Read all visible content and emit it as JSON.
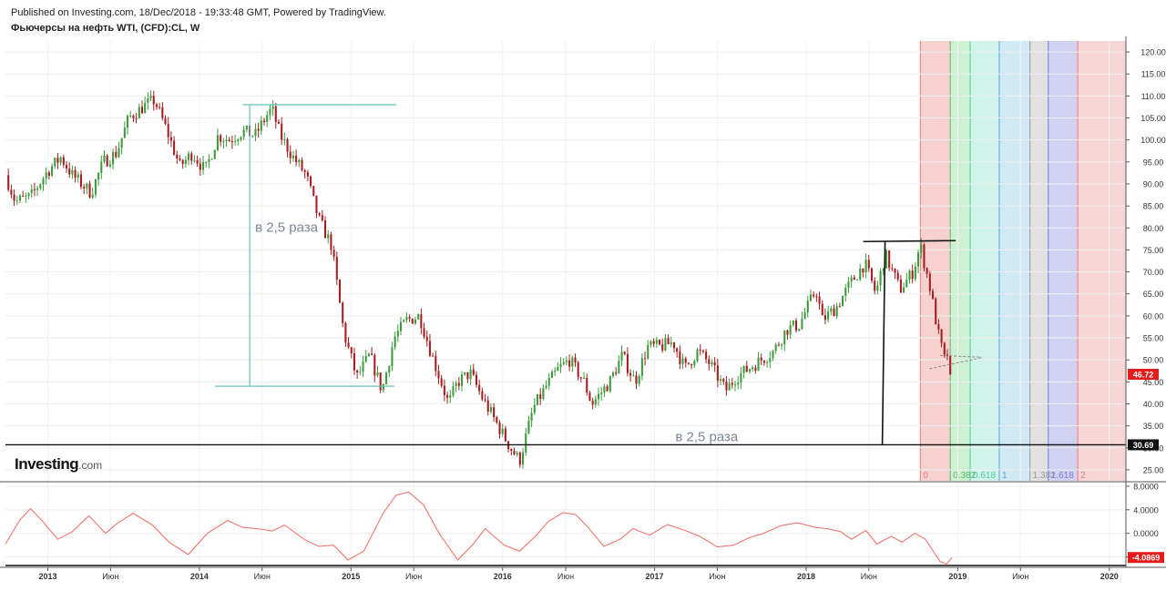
{
  "header": {
    "published": "Published on Investing.com, 18/Dec/2018 - 19:33:48 GMT, Powered by TradingView.",
    "instrument": "Фьючерсы на нефть WTI, (CFD):CL, W"
  },
  "logo": {
    "brand": "Investing",
    "domain": ".com"
  },
  "colors": {
    "bull": "#3d9b3d",
    "bear": "#a41e22",
    "oscillator": "#f0766d",
    "price_badge": "#e31c1c",
    "level_badge": "#111111",
    "annotation_line": "#66c2b5",
    "annotation_text": "#7b8794"
  },
  "chart_data": [
    {
      "type": "candlestick",
      "title": "Фьючерсы на нефть WTI, (CFD):CL, W",
      "x_tick_labels": [
        "2013",
        "Июн",
        "2014",
        "Июн",
        "2015",
        "Июн",
        "2016",
        "Июн",
        "2017",
        "Июн",
        "2018",
        "Июн",
        "2019",
        "Июн",
        "2020"
      ],
      "x_tick_dates": [
        "2013-01-01",
        "2013-06-01",
        "2014-01-01",
        "2014-06-01",
        "2015-01-01",
        "2015-06-01",
        "2016-01-01",
        "2016-06-01",
        "2017-01-01",
        "2017-06-01",
        "2018-01-01",
        "2018-06-01",
        "2019-01-01",
        "2019-06-01",
        "2020-01-01"
      ],
      "x_range": [
        "2012-09-21",
        "2020-02-10"
      ],
      "y_tick_labels": [
        "25.00",
        "30.00",
        "35.00",
        "40.00",
        "45.00",
        "50.00",
        "55.00",
        "60.00",
        "65.00",
        "70.00",
        "75.00",
        "80.00",
        "85.00",
        "90.00",
        "95.00",
        "100.00",
        "105.00",
        "110.00",
        "115.00",
        "120.00"
      ],
      "ylim": [
        22.5,
        122.5
      ],
      "grid": true,
      "last_price": 46.72,
      "last_price_label": "46.72",
      "horizontal_level": 30.69,
      "horizontal_level_label": "30.69",
      "price_path": [
        [
          "2012-09-21",
          92
        ],
        [
          "2012-10-15",
          86
        ],
        [
          "2012-11-20",
          87
        ],
        [
          "2013-01-01",
          93
        ],
        [
          "2013-02-01",
          96
        ],
        [
          "2013-03-01",
          92
        ],
        [
          "2013-04-15",
          88
        ],
        [
          "2013-05-15",
          95
        ],
        [
          "2013-06-15",
          97
        ],
        [
          "2013-07-15",
          105
        ],
        [
          "2013-08-25",
          108
        ],
        [
          "2013-09-15",
          109
        ],
        [
          "2013-10-15",
          102
        ],
        [
          "2013-11-15",
          94
        ],
        [
          "2013-12-15",
          97
        ],
        [
          "2014-01-15",
          93
        ],
        [
          "2014-02-15",
          101
        ],
        [
          "2014-03-15",
          100
        ],
        [
          "2014-04-15",
          102
        ],
        [
          "2014-05-15",
          101
        ],
        [
          "2014-06-15",
          106
        ],
        [
          "2014-06-25",
          107
        ],
        [
          "2014-07-15",
          101
        ],
        [
          "2014-08-15",
          96
        ],
        [
          "2014-09-15",
          92
        ],
        [
          "2014-10-15",
          82
        ],
        [
          "2014-11-15",
          76
        ],
        [
          "2014-12-15",
          56
        ],
        [
          "2015-01-15",
          46
        ],
        [
          "2015-02-15",
          51
        ],
        [
          "2015-03-17",
          43
        ],
        [
          "2015-04-15",
          55
        ],
        [
          "2015-05-15",
          59
        ],
        [
          "2015-06-15",
          60
        ],
        [
          "2015-07-15",
          51
        ],
        [
          "2015-08-24",
          40
        ],
        [
          "2015-09-15",
          45
        ],
        [
          "2015-10-15",
          47
        ],
        [
          "2015-11-15",
          41
        ],
        [
          "2015-12-15",
          36
        ],
        [
          "2016-01-20",
          30
        ],
        [
          "2016-02-11",
          27
        ],
        [
          "2016-03-15",
          39
        ],
        [
          "2016-04-15",
          44
        ],
        [
          "2016-05-15",
          48
        ],
        [
          "2016-06-10",
          50
        ],
        [
          "2016-07-15",
          45
        ],
        [
          "2016-08-03",
          40
        ],
        [
          "2016-09-15",
          45
        ],
        [
          "2016-10-15",
          51
        ],
        [
          "2016-11-15",
          45
        ],
        [
          "2016-12-15",
          53
        ],
        [
          "2017-01-15",
          53
        ],
        [
          "2017-02-15",
          54
        ],
        [
          "2017-03-15",
          48
        ],
        [
          "2017-04-15",
          52
        ],
        [
          "2017-05-15",
          49
        ],
        [
          "2017-06-21",
          43
        ],
        [
          "2017-07-15",
          46
        ],
        [
          "2017-08-15",
          48
        ],
        [
          "2017-09-15",
          50
        ],
        [
          "2017-10-15",
          52
        ],
        [
          "2017-11-15",
          57
        ],
        [
          "2017-12-15",
          58
        ],
        [
          "2018-01-25",
          66
        ],
        [
          "2018-02-09",
          59
        ],
        [
          "2018-03-15",
          62
        ],
        [
          "2018-04-15",
          67
        ],
        [
          "2018-05-22",
          72
        ],
        [
          "2018-06-18",
          65
        ],
        [
          "2018-07-10",
          74
        ],
        [
          "2018-08-15",
          66
        ],
        [
          "2018-09-15",
          70
        ],
        [
          "2018-10-03",
          76
        ],
        [
          "2018-10-25",
          67
        ],
        [
          "2018-11-15",
          56
        ],
        [
          "2018-11-30",
          50
        ],
        [
          "2018-12-10",
          52
        ],
        [
          "2018-12-18",
          46.72
        ]
      ],
      "fibonacci_time_zones": {
        "labels": [
          "0",
          "0.382",
          "0.618",
          "1",
          "1.382",
          "1.618",
          "2"
        ],
        "dates": [
          "2018-10-03",
          "2018-12-14",
          "2019-01-31",
          "2019-04-11",
          "2019-06-24",
          "2019-08-07",
          "2019-10-17"
        ],
        "fills": [
          "#f4c9c6",
          "#c6efcb",
          "#c9f2e6",
          "#c9e5f3",
          "#dcdcdc",
          "#c9c9f0",
          "#f4cfd0"
        ],
        "line_colors": [
          "#e27b79",
          "#58b86a",
          "#54c6a3",
          "#5aa7cf",
          "#999999",
          "#7d7dd4",
          "#e27b79"
        ]
      },
      "annotations": [
        {
          "text": "в 2,5 раза",
          "kind": "range",
          "high": 108,
          "low": 44,
          "date": "2014-06-15",
          "from": "2014-04-15",
          "to": "2015-04-15",
          "top_to": "2015-04-20"
        },
        {
          "text": "в 2,5 раза",
          "kind": "range",
          "high": 76.9,
          "low": 30.69,
          "date": "2018-07-10",
          "from": "2018-06-18",
          "to": "2018-12-14",
          "label_date": "2017-02-20"
        }
      ]
    },
    {
      "type": "line",
      "name": "oscillator",
      "y_tick_labels": [
        "8.0000",
        "4.0000",
        "0.0000",
        "-4.0000"
      ],
      "ylim": [
        -5.6,
        8.6
      ],
      "last_value": -4.0869,
      "last_value_label": "-4.0869",
      "values_path": [
        [
          "2012-09-21",
          -1.8
        ],
        [
          "2012-10-25",
          2.2
        ],
        [
          "2012-11-20",
          4.2
        ],
        [
          "2012-12-20",
          2.0
        ],
        [
          "2013-01-25",
          -1.0
        ],
        [
          "2013-03-01",
          0.3
        ],
        [
          "2013-04-10",
          3.0
        ],
        [
          "2013-05-20",
          0.0
        ],
        [
          "2013-06-15",
          1.6
        ],
        [
          "2013-07-25",
          3.4
        ],
        [
          "2013-09-10",
          1.4
        ],
        [
          "2013-10-20",
          -1.5
        ],
        [
          "2013-12-05",
          -3.6
        ],
        [
          "2014-01-20",
          0.0
        ],
        [
          "2014-03-10",
          2.2
        ],
        [
          "2014-04-15",
          1.0
        ],
        [
          "2014-05-20",
          0.8
        ],
        [
          "2014-06-25",
          0.4
        ],
        [
          "2014-07-25",
          1.4
        ],
        [
          "2014-09-10",
          -1.0
        ],
        [
          "2014-10-15",
          -2.2
        ],
        [
          "2014-11-20",
          -2.0
        ],
        [
          "2014-12-25",
          -4.5
        ],
        [
          "2015-02-01",
          -3.0
        ],
        [
          "2015-03-20",
          3.5
        ],
        [
          "2015-04-20",
          6.5
        ],
        [
          "2015-05-20",
          7.0
        ],
        [
          "2015-06-25",
          4.8
        ],
        [
          "2015-08-01",
          0.0
        ],
        [
          "2015-09-15",
          -4.5
        ],
        [
          "2015-10-20",
          -2.0
        ],
        [
          "2015-11-20",
          0.8
        ],
        [
          "2016-01-05",
          -2.0
        ],
        [
          "2016-02-11",
          -3.0
        ],
        [
          "2016-03-20",
          -0.5
        ],
        [
          "2016-04-20",
          2.0
        ],
        [
          "2016-05-25",
          3.5
        ],
        [
          "2016-06-25",
          3.2
        ],
        [
          "2016-07-25",
          1.0
        ],
        [
          "2016-09-01",
          -2.2
        ],
        [
          "2016-10-10",
          -1.0
        ],
        [
          "2016-11-10",
          0.8
        ],
        [
          "2016-12-20",
          -0.3
        ],
        [
          "2017-02-01",
          1.5
        ],
        [
          "2017-03-15",
          0.5
        ],
        [
          "2017-04-20",
          -0.5
        ],
        [
          "2017-06-01",
          -2.3
        ],
        [
          "2017-07-10",
          -2.0
        ],
        [
          "2017-08-15",
          -0.8
        ],
        [
          "2017-09-20",
          0.0
        ],
        [
          "2017-11-01",
          1.3
        ],
        [
          "2017-12-10",
          1.8
        ],
        [
          "2018-01-25",
          1.0
        ],
        [
          "2018-02-20",
          0.8
        ],
        [
          "2018-03-25",
          0.3
        ],
        [
          "2018-04-20",
          -1.0
        ],
        [
          "2018-05-25",
          0.5
        ],
        [
          "2018-06-20",
          -1.8
        ],
        [
          "2018-07-25",
          -0.5
        ],
        [
          "2018-08-20",
          -1.5
        ],
        [
          "2018-09-20",
          0.0
        ],
        [
          "2018-10-15",
          -1.0
        ],
        [
          "2018-11-20",
          -4.8
        ],
        [
          "2018-12-05",
          -5.2
        ],
        [
          "2018-12-18",
          -4.0869
        ]
      ]
    }
  ]
}
